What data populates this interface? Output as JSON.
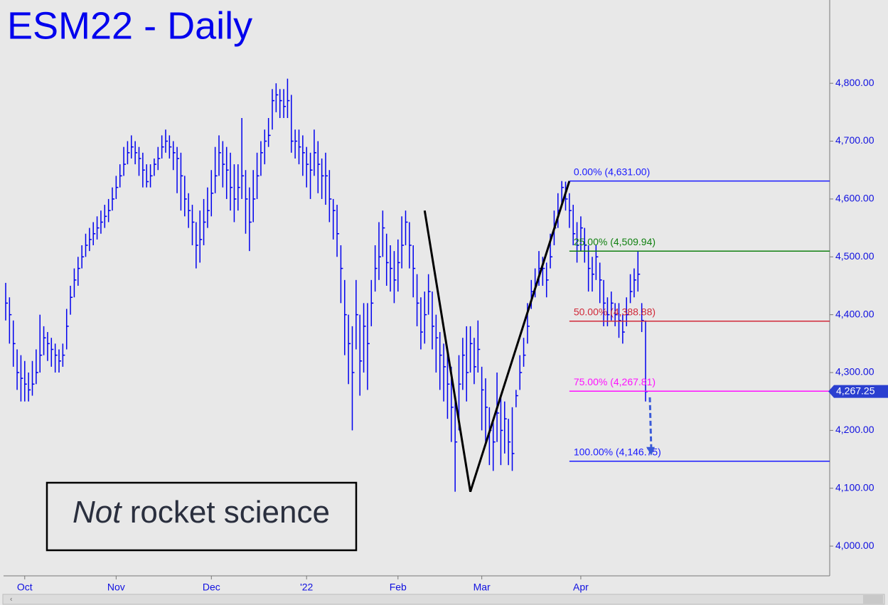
{
  "chart_data": {
    "type": "hlc",
    "title": "ESM22 - Daily",
    "color": "#0000ee",
    "high": [
      4455,
      4430,
      4390,
      4340,
      4330,
      4320,
      4300,
      4320,
      4340,
      4400,
      4380,
      4370,
      4360,
      4350,
      4340,
      4350,
      4410,
      4450,
      4480,
      4500,
      4520,
      4540,
      4550,
      4560,
      4570,
      4580,
      4590,
      4600,
      4620,
      4640,
      4660,
      4690,
      4700,
      4710,
      4700,
      4690,
      4680,
      4660,
      4660,
      4670,
      4690,
      4710,
      4720,
      4710,
      4700,
      4690,
      4680,
      4640,
      4610,
      4590,
      4560,
      4580,
      4600,
      4620,
      4650,
      4690,
      4710,
      4700,
      4690,
      4680,
      4660,
      4660,
      4740,
      4650,
      4620,
      4650,
      4680,
      4700,
      4720,
      4740,
      4790,
      4800,
      4790,
      4790,
      4808,
      4780,
      4720,
      4720,
      4710,
      4690,
      4680,
      4720,
      4700,
      4670,
      4680,
      4650,
      4600,
      4590,
      4520,
      4460,
      4400,
      4380,
      4460,
      4400,
      4420,
      4420,
      4460,
      4520,
      4560,
      4580,
      4540,
      4520,
      4510,
      4530,
      4570,
      4580,
      4560,
      4520,
      4470,
      4430,
      4440,
      4470,
      4440,
      4400,
      4370,
      4350,
      4340,
      4310,
      4250,
      4330,
      4360,
      4380,
      4380,
      4360,
      4390,
      4310,
      4290,
      4240,
      4220,
      4300,
      4260,
      4250,
      4220,
      4240,
      4270,
      4330,
      4360,
      4420,
      4460,
      4480,
      4510,
      4500,
      4490,
      4540,
      4580,
      4610,
      4631,
      4630,
      4610,
      4590,
      4560,
      4570,
      4550,
      4520,
      4500,
      4520,
      4490,
      4460,
      4430,
      4440,
      4420,
      4420,
      4400,
      4430,
      4470,
      4480,
      4510,
      4420,
      4390
    ],
    "low": [
      4390,
      4350,
      4310,
      4270,
      4250,
      4250,
      4250,
      4260,
      4280,
      4300,
      4330,
      4320,
      4310,
      4300,
      4300,
      4310,
      4340,
      4400,
      4430,
      4450,
      4480,
      4500,
      4510,
      4520,
      4530,
      4540,
      4550,
      4560,
      4580,
      4600,
      4620,
      4640,
      4660,
      4670,
      4660,
      4640,
      4620,
      4620,
      4620,
      4640,
      4650,
      4670,
      4680,
      4670,
      4650,
      4610,
      4580,
      4570,
      4550,
      4520,
      4480,
      4490,
      4520,
      4550,
      4570,
      4610,
      4640,
      4620,
      4600,
      4580,
      4560,
      4580,
      4600,
      4540,
      4510,
      4560,
      4600,
      4640,
      4660,
      4690,
      4720,
      4750,
      4740,
      4740,
      4740,
      4680,
      4670,
      4660,
      4640,
      4620,
      4600,
      4640,
      4610,
      4600,
      4590,
      4560,
      4530,
      4500,
      4420,
      4330,
      4280,
      4200,
      4340,
      4260,
      4300,
      4270,
      4380,
      4440,
      4460,
      4500,
      4450,
      4440,
      4420,
      4440,
      4480,
      4520,
      4480,
      4430,
      4380,
      4340,
      4350,
      4400,
      4340,
      4300,
      4270,
      4250,
      4220,
      4180,
      4094,
      4200,
      4270,
      4250,
      4300,
      4280,
      4300,
      4200,
      4180,
      4140,
      4130,
      4180,
      4140,
      4160,
      4140,
      4130,
      4240,
      4270,
      4310,
      4350,
      4410,
      4430,
      4450,
      4450,
      4430,
      4480,
      4520,
      4550,
      4590,
      4580,
      4550,
      4520,
      4490,
      4510,
      4490,
      4440,
      4440,
      4460,
      4420,
      4380,
      4380,
      4390,
      4380,
      4360,
      4350,
      4380,
      4420,
      4430,
      4440,
      4370,
      4250
    ],
    "close": [
      4420,
      4400,
      4350,
      4300,
      4290,
      4280,
      4270,
      4280,
      4300,
      4330,
      4360,
      4350,
      4340,
      4330,
      4320,
      4330,
      4380,
      4430,
      4460,
      4480,
      4500,
      4520,
      4530,
      4540,
      4550,
      4560,
      4570,
      4580,
      4600,
      4620,
      4640,
      4660,
      4680,
      4690,
      4680,
      4670,
      4650,
      4630,
      4640,
      4660,
      4670,
      4690,
      4700,
      4690,
      4680,
      4670,
      4640,
      4600,
      4580,
      4560,
      4520,
      4530,
      4560,
      4580,
      4610,
      4640,
      4680,
      4660,
      4650,
      4620,
      4600,
      4620,
      4640,
      4600,
      4560,
      4600,
      4640,
      4680,
      4700,
      4710,
      4770,
      4780,
      4770,
      4760,
      4770,
      4700,
      4700,
      4690,
      4680,
      4660,
      4650,
      4680,
      4660,
      4640,
      4640,
      4600,
      4580,
      4540,
      4480,
      4400,
      4350,
      4300,
      4400,
      4320,
      4380,
      4350,
      4420,
      4480,
      4500,
      4550,
      4490,
      4480,
      4460,
      4490,
      4520,
      4560,
      4520,
      4480,
      4420,
      4370,
      4400,
      4440,
      4380,
      4360,
      4330,
      4310,
      4280,
      4240,
      4180,
      4280,
      4330,
      4300,
      4350,
      4310,
      4340,
      4270,
      4240,
      4200,
      4180,
      4230,
      4200,
      4220,
      4180,
      4160,
      4260,
      4300,
      4330,
      4380,
      4440,
      4450,
      4480,
      4480,
      4460,
      4500,
      4550,
      4580,
      4620,
      4600,
      4580,
      4540,
      4520,
      4550,
      4520,
      4480,
      4470,
      4500,
      4460,
      4420,
      4400,
      4420,
      4400,
      4390,
      4370,
      4400,
      4440,
      4460,
      4470,
      4390,
      4267
    ],
    "xticks": [
      {
        "value": 5,
        "label": "Oct"
      },
      {
        "value": 29,
        "label": "Nov"
      },
      {
        "value": 54,
        "label": "Dec"
      },
      {
        "value": 79,
        "label": "'22"
      },
      {
        "value": 103,
        "label": "Feb"
      },
      {
        "value": 125,
        "label": "Mar"
      },
      {
        "value": 151,
        "label": "Apr"
      }
    ],
    "ylim": [
      3951,
      4944
    ],
    "yticks": [
      {
        "value": 4000,
        "label": "4,000.00"
      },
      {
        "value": 4100,
        "label": "4,100.00"
      },
      {
        "value": 4200,
        "label": "4,200.00"
      },
      {
        "value": 4300,
        "label": "4,300.00"
      },
      {
        "value": 4400,
        "label": "4,400.00"
      },
      {
        "value": 4500,
        "label": "4,500.00"
      },
      {
        "value": 4600,
        "label": "4,600.00"
      },
      {
        "value": 4700,
        "label": "4,700.00"
      },
      {
        "value": 4800,
        "label": "4,800.00"
      }
    ],
    "last_price": {
      "value": 4267.25,
      "label": "4,267.25"
    },
    "pattern": {
      "index": [
        110,
        122,
        148
      ],
      "values": [
        4580,
        4094,
        4631
      ],
      "color": "#000000"
    },
    "fib_start_index": 148,
    "fib_levels": [
      {
        "value": 4631,
        "label": "0.00% (4,631.00)",
        "color": "#1a1aff"
      },
      {
        "value": 4509.94,
        "label": "25.00% (4,509.94)",
        "color": "#108010"
      },
      {
        "value": 4388.88,
        "label": "50.00% (4,388.88)",
        "color": "#d02838"
      },
      {
        "value": 4267.81,
        "label": "75.00% (4,267.81)",
        "color": "#ff10ff"
      },
      {
        "value": 4146.75,
        "label": "100.00% (4,146.75)",
        "color": "#1a1aff"
      }
    ],
    "note": {
      "emphasis": "Not",
      "text": "rocket science"
    }
  }
}
